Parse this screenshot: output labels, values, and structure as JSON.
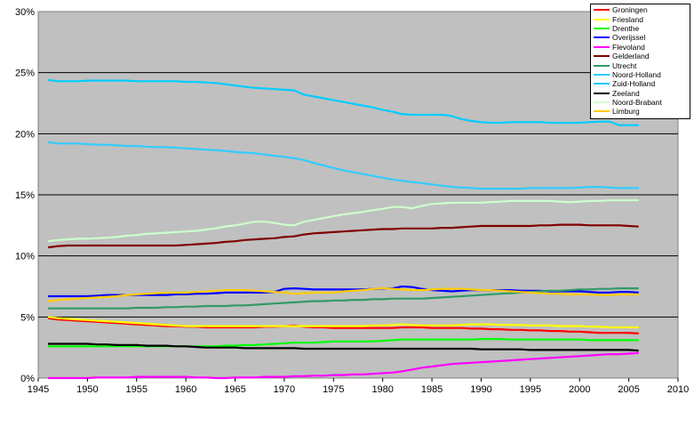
{
  "chart_data": {
    "type": "line",
    "title": "",
    "xlabel": "",
    "ylabel": "",
    "xlim": [
      1945,
      2010
    ],
    "ylim": [
      0,
      30
    ],
    "x_ticks": [
      "1945",
      "1950",
      "1955",
      "1960",
      "1965",
      "1970",
      "1975",
      "1980",
      "1985",
      "1990",
      "1995",
      "2000",
      "2005",
      "2010"
    ],
    "y_ticks": [
      "0%",
      "5%",
      "10%",
      "15%",
      "20%",
      "25%",
      "30%"
    ],
    "grid": true,
    "legend_position": "top-right",
    "x": [
      1946,
      1947,
      1948,
      1949,
      1950,
      1951,
      1952,
      1953,
      1954,
      1955,
      1956,
      1957,
      1958,
      1959,
      1960,
      1961,
      1962,
      1963,
      1964,
      1965,
      1966,
      1967,
      1968,
      1969,
      1970,
      1971,
      1972,
      1973,
      1974,
      1975,
      1976,
      1977,
      1978,
      1979,
      1980,
      1981,
      1982,
      1983,
      1984,
      1985,
      1986,
      1987,
      1988,
      1989,
      1990,
      1991,
      1992,
      1993,
      1994,
      1995,
      1996,
      1997,
      1998,
      1999,
      2000,
      2001,
      2002,
      2003,
      2004,
      2005,
      2006
    ],
    "series": [
      {
        "name": "Groningen",
        "color": "#ff0000",
        "values": [
          4.9,
          4.8,
          4.75,
          4.7,
          4.65,
          4.6,
          4.55,
          4.5,
          4.45,
          4.4,
          4.35,
          4.3,
          4.25,
          4.25,
          4.2,
          4.2,
          4.15,
          4.15,
          4.15,
          4.15,
          4.15,
          4.15,
          4.2,
          4.2,
          4.25,
          4.3,
          4.2,
          4.15,
          4.15,
          4.1,
          4.1,
          4.1,
          4.1,
          4.1,
          4.1,
          4.1,
          4.15,
          4.15,
          4.15,
          4.1,
          4.1,
          4.1,
          4.1,
          4.05,
          4.05,
          4.0,
          4.0,
          3.95,
          3.95,
          3.9,
          3.9,
          3.85,
          3.85,
          3.8,
          3.8,
          3.75,
          3.7,
          3.7,
          3.7,
          3.7,
          3.65
        ]
      },
      {
        "name": "Friesland",
        "color": "#ffff00",
        "values": [
          5.0,
          4.9,
          4.85,
          4.8,
          4.75,
          4.7,
          4.65,
          4.6,
          4.55,
          4.5,
          4.45,
          4.4,
          4.35,
          4.3,
          4.25,
          4.25,
          4.25,
          4.25,
          4.25,
          4.25,
          4.25,
          4.25,
          4.25,
          4.25,
          4.25,
          4.25,
          4.25,
          4.25,
          4.25,
          4.25,
          4.25,
          4.25,
          4.25,
          4.3,
          4.3,
          4.35,
          4.4,
          4.35,
          4.3,
          4.3,
          4.3,
          4.3,
          4.35,
          4.4,
          4.4,
          4.4,
          4.35,
          4.35,
          4.35,
          4.3,
          4.3,
          4.3,
          4.25,
          4.25,
          4.25,
          4.2,
          4.2,
          4.15,
          4.15,
          4.15,
          4.15
        ]
      },
      {
        "name": "Drenthe",
        "color": "#00ff00",
        "values": [
          2.6,
          2.6,
          2.6,
          2.6,
          2.6,
          2.6,
          2.6,
          2.6,
          2.6,
          2.6,
          2.6,
          2.6,
          2.6,
          2.6,
          2.6,
          2.6,
          2.6,
          2.6,
          2.65,
          2.65,
          2.7,
          2.7,
          2.75,
          2.8,
          2.85,
          2.9,
          2.9,
          2.9,
          2.95,
          3.0,
          3.0,
          3.0,
          3.0,
          3.0,
          3.05,
          3.1,
          3.15,
          3.15,
          3.15,
          3.15,
          3.15,
          3.15,
          3.15,
          3.15,
          3.2,
          3.2,
          3.2,
          3.15,
          3.15,
          3.15,
          3.15,
          3.15,
          3.15,
          3.15,
          3.15,
          3.1,
          3.1,
          3.1,
          3.1,
          3.1,
          3.1
        ]
      },
      {
        "name": "Overijssel",
        "color": "#0000ff",
        "values": [
          6.7,
          6.7,
          6.7,
          6.7,
          6.7,
          6.75,
          6.8,
          6.8,
          6.8,
          6.8,
          6.8,
          6.8,
          6.8,
          6.85,
          6.85,
          6.9,
          6.9,
          6.95,
          7.0,
          7.0,
          7.0,
          7.0,
          7.0,
          7.05,
          7.3,
          7.35,
          7.3,
          7.25,
          7.25,
          7.25,
          7.25,
          7.25,
          7.25,
          7.3,
          7.3,
          7.35,
          7.5,
          7.45,
          7.3,
          7.2,
          7.15,
          7.1,
          7.15,
          7.2,
          7.2,
          7.2,
          7.2,
          7.2,
          7.15,
          7.15,
          7.15,
          7.1,
          7.1,
          7.1,
          7.1,
          7.05,
          7.0,
          7.0,
          7.05,
          7.05,
          7.0
        ]
      },
      {
        "name": "Flevoland",
        "color": "#ff00ff",
        "values": [
          0.0,
          0.0,
          0.0,
          0.0,
          0.0,
          0.05,
          0.05,
          0.05,
          0.05,
          0.1,
          0.1,
          0.1,
          0.1,
          0.1,
          0.1,
          0.05,
          0.05,
          0.0,
          0.0,
          0.05,
          0.05,
          0.05,
          0.1,
          0.1,
          0.1,
          0.15,
          0.15,
          0.2,
          0.2,
          0.25,
          0.25,
          0.3,
          0.3,
          0.35,
          0.4,
          0.45,
          0.55,
          0.7,
          0.85,
          0.95,
          1.05,
          1.15,
          1.2,
          1.25,
          1.3,
          1.35,
          1.4,
          1.45,
          1.5,
          1.55,
          1.6,
          1.65,
          1.7,
          1.75,
          1.8,
          1.85,
          1.9,
          1.95,
          1.95,
          2.0,
          2.05
        ]
      },
      {
        "name": "Gelderland",
        "color": "#800000",
        "values": [
          10.7,
          10.8,
          10.85,
          10.85,
          10.85,
          10.85,
          10.85,
          10.85,
          10.85,
          10.85,
          10.85,
          10.85,
          10.85,
          10.85,
          10.9,
          10.95,
          11.0,
          11.05,
          11.15,
          11.2,
          11.3,
          11.35,
          11.4,
          11.45,
          11.55,
          11.6,
          11.75,
          11.85,
          11.9,
          11.95,
          12.0,
          12.05,
          12.1,
          12.15,
          12.2,
          12.2,
          12.25,
          12.25,
          12.25,
          12.25,
          12.3,
          12.3,
          12.35,
          12.4,
          12.45,
          12.45,
          12.45,
          12.45,
          12.45,
          12.45,
          12.5,
          12.5,
          12.55,
          12.55,
          12.55,
          12.5,
          12.5,
          12.5,
          12.5,
          12.45,
          12.4
        ]
      },
      {
        "name": "Utrecht",
        "color": "#339966",
        "values": [
          5.7,
          5.7,
          5.7,
          5.7,
          5.7,
          5.7,
          5.7,
          5.7,
          5.7,
          5.75,
          5.75,
          5.75,
          5.8,
          5.8,
          5.85,
          5.85,
          5.9,
          5.9,
          5.9,
          5.95,
          5.95,
          6.0,
          6.05,
          6.1,
          6.15,
          6.2,
          6.25,
          6.3,
          6.3,
          6.35,
          6.35,
          6.4,
          6.4,
          6.45,
          6.45,
          6.5,
          6.5,
          6.5,
          6.5,
          6.55,
          6.6,
          6.65,
          6.7,
          6.75,
          6.8,
          6.85,
          6.9,
          6.95,
          7.0,
          7.05,
          7.1,
          7.15,
          7.15,
          7.2,
          7.25,
          7.25,
          7.3,
          7.3,
          7.35,
          7.35,
          7.35
        ]
      },
      {
        "name": "Noord-Holland",
        "color": "#33ccff",
        "values": [
          19.3,
          19.2,
          19.2,
          19.2,
          19.15,
          19.1,
          19.1,
          19.05,
          19.0,
          19.0,
          18.95,
          18.9,
          18.9,
          18.85,
          18.8,
          18.75,
          18.7,
          18.65,
          18.6,
          18.5,
          18.45,
          18.4,
          18.3,
          18.2,
          18.1,
          18.0,
          17.85,
          17.6,
          17.4,
          17.2,
          17.0,
          16.85,
          16.7,
          16.55,
          16.4,
          16.25,
          16.15,
          16.05,
          15.95,
          15.85,
          15.75,
          15.65,
          15.6,
          15.55,
          15.5,
          15.5,
          15.5,
          15.5,
          15.5,
          15.55,
          15.55,
          15.55,
          15.55,
          15.55,
          15.6,
          15.65,
          15.65,
          15.6,
          15.55,
          15.55,
          15.55
        ]
      },
      {
        "name": "Zuid-Holland",
        "color": "#00ccff",
        "values": [
          24.4,
          24.3,
          24.3,
          24.3,
          24.35,
          24.35,
          24.35,
          24.35,
          24.35,
          24.3,
          24.3,
          24.3,
          24.3,
          24.3,
          24.25,
          24.25,
          24.2,
          24.15,
          24.05,
          23.95,
          23.85,
          23.75,
          23.7,
          23.65,
          23.6,
          23.55,
          23.2,
          23.05,
          22.9,
          22.75,
          22.6,
          22.45,
          22.3,
          22.15,
          21.95,
          21.8,
          21.6,
          21.55,
          21.55,
          21.55,
          21.55,
          21.45,
          21.2,
          21.05,
          20.95,
          20.9,
          20.9,
          20.95,
          20.95,
          20.95,
          20.95,
          20.9,
          20.9,
          20.9,
          20.9,
          20.95,
          21.0,
          21.0,
          20.7,
          20.7,
          20.7
        ]
      },
      {
        "name": "Zeeland",
        "color": "#000000",
        "values": [
          2.8,
          2.8,
          2.8,
          2.8,
          2.8,
          2.75,
          2.75,
          2.7,
          2.7,
          2.7,
          2.65,
          2.65,
          2.65,
          2.6,
          2.6,
          2.55,
          2.5,
          2.5,
          2.5,
          2.5,
          2.45,
          2.45,
          2.45,
          2.45,
          2.45,
          2.45,
          2.4,
          2.4,
          2.4,
          2.4,
          2.4,
          2.4,
          2.4,
          2.4,
          2.4,
          2.4,
          2.4,
          2.4,
          2.4,
          2.4,
          2.4,
          2.4,
          2.4,
          2.4,
          2.35,
          2.35,
          2.35,
          2.35,
          2.35,
          2.3,
          2.3,
          2.3,
          2.3,
          2.3,
          2.3,
          2.3,
          2.3,
          2.3,
          2.3,
          2.3,
          2.25
        ]
      },
      {
        "name": "Noord-Brabant",
        "color": "#ccffcc",
        "values": [
          11.2,
          11.3,
          11.35,
          11.4,
          11.4,
          11.45,
          11.5,
          11.55,
          11.65,
          11.7,
          11.8,
          11.85,
          11.9,
          11.95,
          12.0,
          12.05,
          12.15,
          12.25,
          12.4,
          12.5,
          12.65,
          12.8,
          12.8,
          12.7,
          12.55,
          12.5,
          12.8,
          12.95,
          13.1,
          13.25,
          13.4,
          13.5,
          13.6,
          13.75,
          13.85,
          14.0,
          14.0,
          13.9,
          14.1,
          14.25,
          14.3,
          14.35,
          14.35,
          14.35,
          14.35,
          14.4,
          14.45,
          14.5,
          14.5,
          14.5,
          14.5,
          14.5,
          14.45,
          14.4,
          14.45,
          14.5,
          14.5,
          14.55,
          14.55,
          14.55,
          14.55
        ]
      },
      {
        "name": "Limburg",
        "color": "#ffcc00",
        "values": [
          6.3,
          6.4,
          6.45,
          6.5,
          6.55,
          6.6,
          6.65,
          6.7,
          6.8,
          6.85,
          6.9,
          6.95,
          7.0,
          7.0,
          7.0,
          7.05,
          7.1,
          7.15,
          7.2,
          7.2,
          7.2,
          7.15,
          7.1,
          7.05,
          7.0,
          6.9,
          6.95,
          7.0,
          7.0,
          7.0,
          7.1,
          7.15,
          7.2,
          7.3,
          7.35,
          7.3,
          7.25,
          7.2,
          7.2,
          7.25,
          7.3,
          7.3,
          7.3,
          7.25,
          7.2,
          7.2,
          7.15,
          7.1,
          7.05,
          7.0,
          6.95,
          6.9,
          6.9,
          6.85,
          6.85,
          6.85,
          6.8,
          6.8,
          6.85,
          6.85,
          6.85
        ]
      }
    ]
  }
}
